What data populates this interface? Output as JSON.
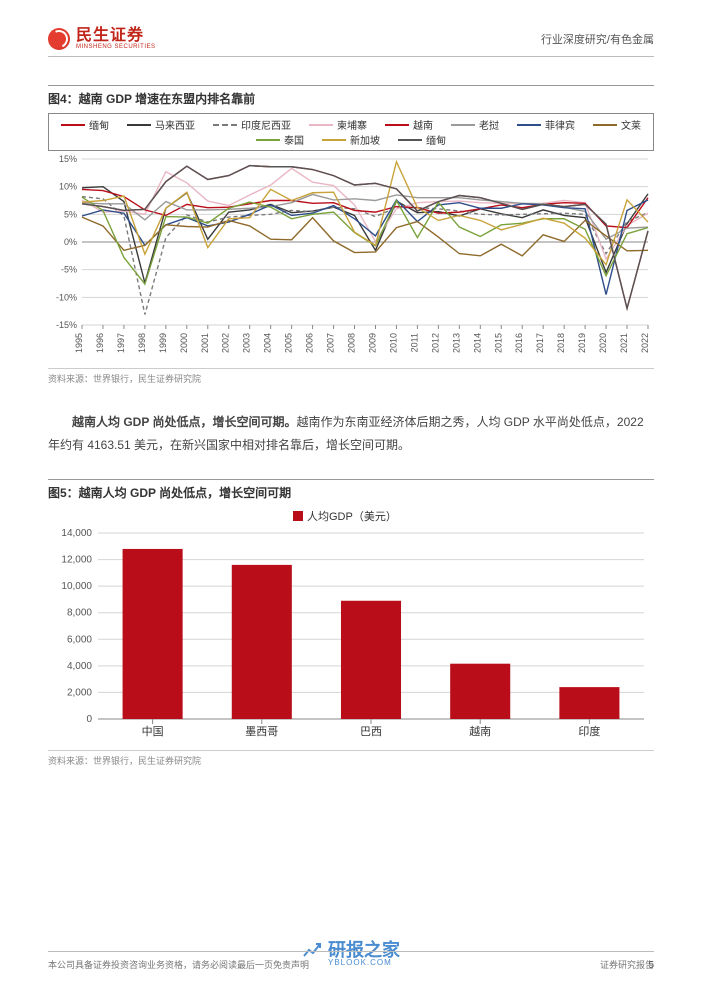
{
  "header": {
    "logo_cn": "民生证券",
    "logo_en": "MINSHENG SECURITIES",
    "breadcrumb": "行业深度研究/有色金属"
  },
  "fig4": {
    "title": "图4：越南 GDP 增速在东盟内排名靠前",
    "source": "资料来源：世界银行，民生证券研究院",
    "type": "line",
    "xlim": [
      1995,
      2022
    ],
    "xticks": [
      1995,
      1996,
      1997,
      1998,
      1999,
      2000,
      2001,
      2002,
      2003,
      2004,
      2005,
      2006,
      2007,
      2008,
      2009,
      2010,
      2011,
      2012,
      2013,
      2014,
      2015,
      2016,
      2017,
      2018,
      2019,
      2020,
      2021,
      2022
    ],
    "ylim": [
      -15,
      15
    ],
    "yticks": [
      -15,
      -10,
      -5,
      0,
      5,
      10,
      15
    ],
    "ytick_labels": [
      "-15%",
      "-10%",
      "-5%",
      "0%",
      "5%",
      "10%",
      "15%"
    ],
    "background_color": "#ffffff",
    "grid_color": "#d5d5d5",
    "axis_color": "#888888",
    "tick_fontsize": 9,
    "legend_fontsize": 10,
    "series": [
      {
        "name": "缅甸",
        "color": "#b90e1a",
        "dash": "solid",
        "values": [
          6.9,
          6.4,
          5.7,
          5.9,
          10.9,
          13.7,
          11.3,
          12.0,
          13.8,
          13.6,
          13.6,
          13.1,
          12.0,
          10.3,
          10.6,
          9.6,
          5.6,
          7.3,
          8.4,
          8.0,
          7.0,
          5.9,
          6.8,
          6.4,
          6.8,
          3.2,
          -12.0,
          2.0
        ]
      },
      {
        "name": "马来西亚",
        "color": "#3a3a3a",
        "dash": "solid",
        "values": [
          9.8,
          10.0,
          7.3,
          -7.4,
          6.1,
          8.9,
          0.5,
          5.4,
          5.8,
          6.8,
          5.3,
          5.6,
          6.3,
          4.8,
          -1.5,
          7.4,
          5.3,
          5.5,
          4.7,
          6.0,
          5.1,
          4.4,
          5.8,
          4.8,
          4.4,
          -5.5,
          3.3,
          8.7
        ]
      },
      {
        "name": "印度尼西亚",
        "color": "#7a7a7a",
        "dash": "dashed",
        "values": [
          8.2,
          7.8,
          4.7,
          -13.1,
          0.8,
          4.9,
          3.6,
          4.5,
          4.8,
          5.0,
          5.7,
          5.5,
          6.3,
          6.0,
          4.6,
          6.2,
          6.2,
          6.0,
          5.6,
          5.0,
          4.9,
          5.0,
          5.1,
          5.2,
          5.0,
          -2.1,
          3.7,
          5.3
        ]
      },
      {
        "name": "柬埔寨",
        "color": "#e9b7c4",
        "dash": "solid",
        "values": [
          7.6,
          5.4,
          5.6,
          5.0,
          12.7,
          10.7,
          7.4,
          6.6,
          8.5,
          10.3,
          13.3,
          10.8,
          10.2,
          6.7,
          0.1,
          6.0,
          7.1,
          7.3,
          7.4,
          7.1,
          7.0,
          6.9,
          7.0,
          7.5,
          7.1,
          -3.1,
          3.0,
          5.2
        ]
      },
      {
        "name": "越南",
        "color": "#b90e1a",
        "dash": "solid",
        "values": [
          9.5,
          9.3,
          8.2,
          5.8,
          4.8,
          6.8,
          6.2,
          6.3,
          6.9,
          7.5,
          7.5,
          7.0,
          7.1,
          5.7,
          5.4,
          6.4,
          6.2,
          5.2,
          5.4,
          6.0,
          6.7,
          6.2,
          6.8,
          7.1,
          7.0,
          2.9,
          2.6,
          8.0
        ]
      },
      {
        "name": "老挝",
        "color": "#9a9a9a",
        "dash": "solid",
        "values": [
          7.1,
          6.9,
          6.9,
          4.0,
          7.3,
          5.8,
          5.8,
          5.9,
          6.1,
          6.4,
          7.1,
          8.6,
          7.6,
          7.8,
          7.5,
          8.5,
          8.0,
          8.0,
          8.0,
          7.6,
          7.3,
          7.0,
          6.9,
          6.3,
          5.5,
          0.5,
          2.5,
          2.7
        ]
      },
      {
        "name": "菲律宾",
        "color": "#2d4e8a",
        "dash": "solid",
        "values": [
          4.7,
          5.8,
          5.2,
          -0.6,
          3.1,
          4.4,
          2.9,
          3.6,
          5.0,
          6.7,
          4.8,
          5.2,
          6.6,
          4.2,
          1.1,
          7.6,
          3.7,
          6.7,
          7.1,
          6.1,
          6.1,
          6.9,
          6.7,
          6.2,
          6.0,
          -9.5,
          5.7,
          7.6
        ]
      },
      {
        "name": "文莱",
        "color": "#8f6a2a",
        "dash": "solid",
        "values": [
          4.5,
          2.9,
          -1.5,
          -0.6,
          3.1,
          2.8,
          2.7,
          3.9,
          2.9,
          0.5,
          0.4,
          4.4,
          0.2,
          -1.9,
          -1.8,
          2.6,
          3.7,
          0.9,
          -2.1,
          -2.5,
          -0.4,
          -2.5,
          1.3,
          0.1,
          3.9,
          1.1,
          -1.6,
          -1.5
        ]
      },
      {
        "name": "泰国",
        "color": "#7aa23a",
        "dash": "solid",
        "values": [
          8.1,
          5.7,
          -2.8,
          -7.6,
          4.6,
          4.5,
          3.4,
          6.1,
          7.2,
          6.3,
          4.2,
          5.0,
          5.4,
          1.7,
          -0.7,
          7.5,
          0.8,
          7.2,
          2.7,
          1.0,
          3.1,
          3.4,
          4.2,
          4.2,
          2.3,
          -6.1,
          1.5,
          2.6
        ]
      },
      {
        "name": "新加坡",
        "color": "#c9a33a",
        "dash": "solid",
        "values": [
          7.2,
          7.5,
          8.3,
          -2.2,
          6.1,
          9.0,
          -1.0,
          4.2,
          4.4,
          9.5,
          7.5,
          8.9,
          9.0,
          1.8,
          -0.6,
          14.5,
          6.2,
          3.9,
          4.8,
          3.9,
          2.2,
          3.2,
          4.3,
          3.4,
          0.7,
          -4.1,
          7.6,
          3.6
        ]
      },
      {
        "name": "缅甸",
        "color": "#555555",
        "dash": "solid",
        "values": [
          6.9,
          6.4,
          5.7,
          5.9,
          10.9,
          13.7,
          11.3,
          12.0,
          13.8,
          13.6,
          13.6,
          13.1,
          12.0,
          10.3,
          10.6,
          9.6,
          5.6,
          7.3,
          8.4,
          8.0,
          7.0,
          5.9,
          6.8,
          6.4,
          6.8,
          3.2,
          -12.0,
          2.0
        ]
      }
    ]
  },
  "paragraph": {
    "bold": "越南人均 GDP 尚处低点，增长空间可期。",
    "rest": "越南作为东南亚经济体后期之秀，人均 GDP 水平尚处低点，2022 年约有 4163.51 美元，在新兴国家中相对排名靠后，增长空间可期。"
  },
  "fig5": {
    "title": "图5：越南人均 GDP 尚处低点，增长空间可期",
    "source": "资料来源：世界银行，民生证券研究院",
    "type": "bar",
    "legend_label": "人均GDP（美元）",
    "legend_color": "#b90e1a",
    "categories": [
      "中国",
      "墨西哥",
      "巴西",
      "越南",
      "印度"
    ],
    "values": [
      12800,
      11600,
      8900,
      4163,
      2400
    ],
    "bar_color": "#b90e1a",
    "ylim": [
      0,
      14000
    ],
    "yticks": [
      0,
      2000,
      4000,
      6000,
      8000,
      10000,
      12000,
      14000
    ],
    "ytick_labels": [
      "0",
      "2,000",
      "4,000",
      "6,000",
      "8,000",
      "10,000",
      "12,000",
      "14,000"
    ],
    "background_color": "#ffffff",
    "grid_color": "#d5d5d5",
    "axis_color": "#888888",
    "tick_fontsize": 10,
    "bar_width": 0.55
  },
  "watermark": {
    "text": "研报之家",
    "sub": "YBLOOK.COM"
  },
  "footer": {
    "left": "本公司具备证券投资咨询业务资格，请务必阅读最后一页免责声明",
    "right": "证券研究报告",
    "page": "5"
  }
}
